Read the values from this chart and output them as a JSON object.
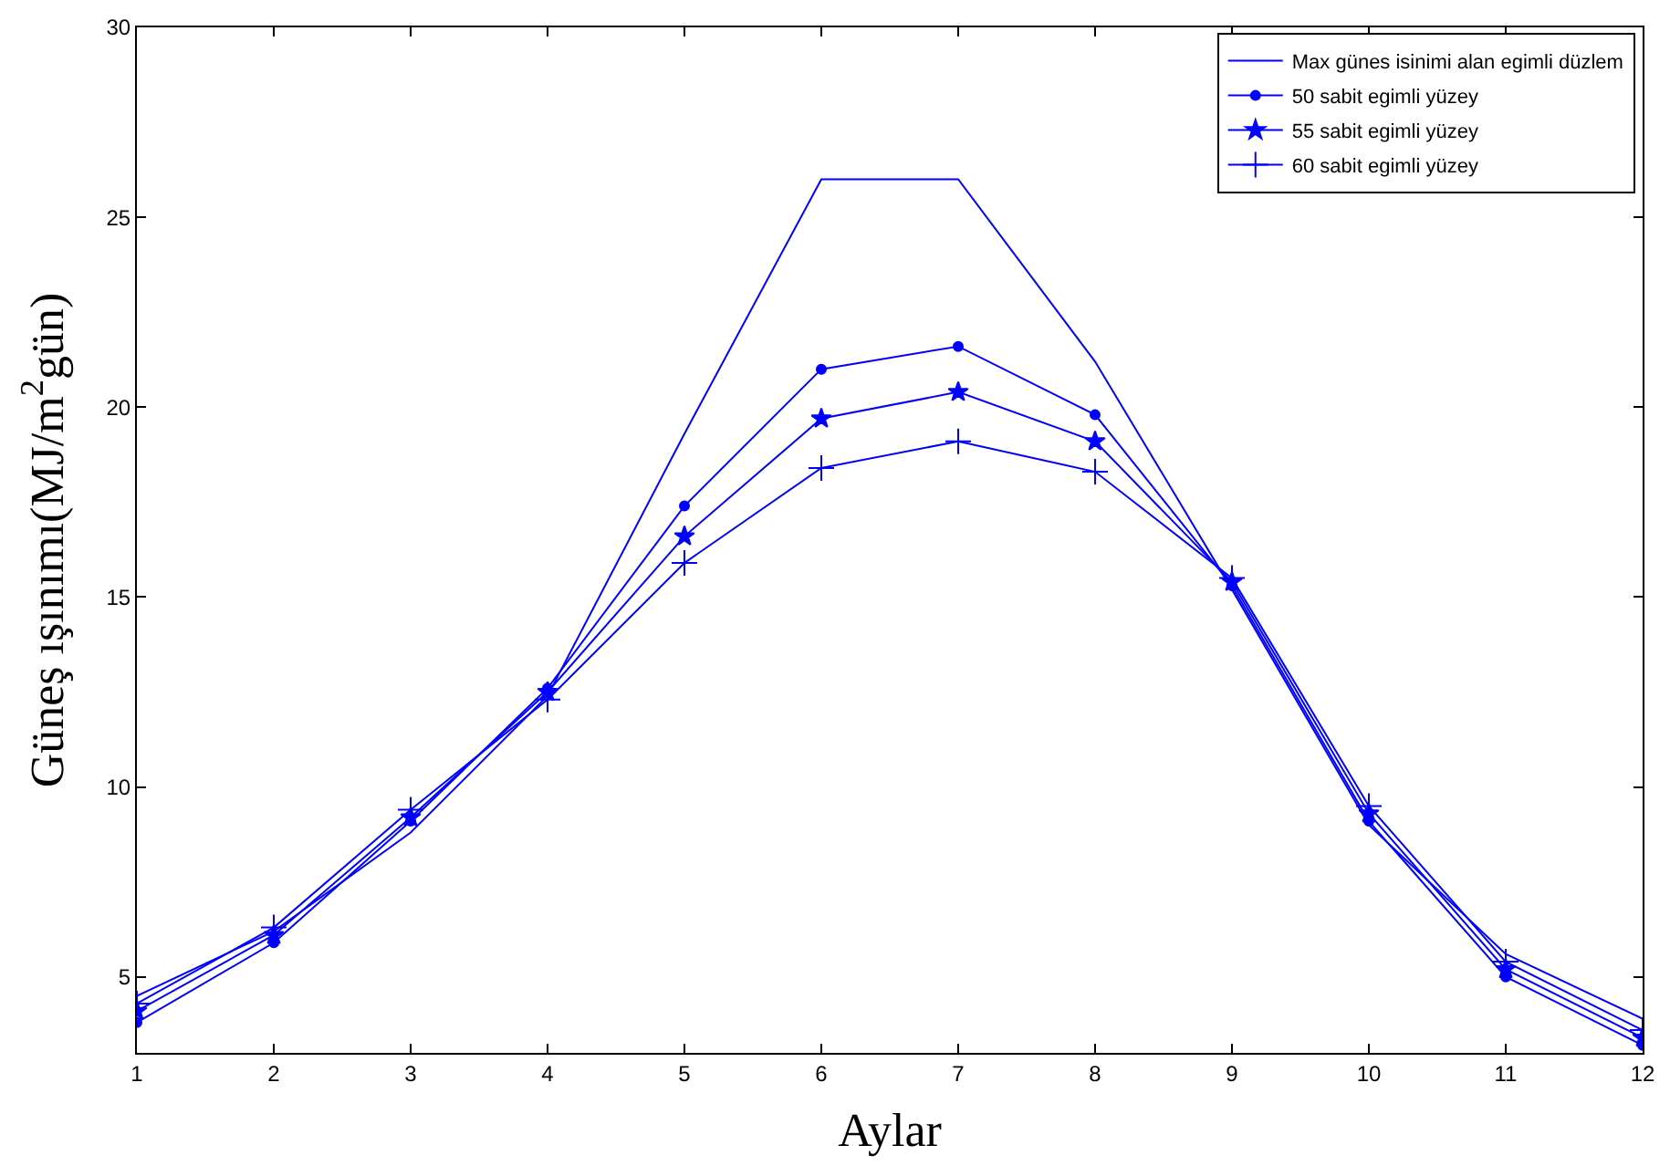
{
  "chart_data": {
    "type": "line",
    "xlabel": "Aylar",
    "ylabel": "Güneş ışınımı(MJ/m$^{2}$gün)",
    "x": [
      1,
      2,
      3,
      4,
      5,
      6,
      7,
      8,
      9,
      10,
      11,
      12
    ],
    "xlim": [
      1,
      12
    ],
    "xticks": [
      1,
      2,
      3,
      4,
      5,
      6,
      7,
      8,
      9,
      10,
      11,
      12
    ],
    "ylim": [
      3,
      30
    ],
    "yticks": [
      5,
      10,
      15,
      20,
      25,
      30
    ],
    "legend": "top right",
    "line_style": "solid",
    "series": [
      {
        "name": "Max günes isinimi alan egimli düzlem",
        "color": "#0000ff",
        "marker": "none",
        "values": [
          4.5,
          6.2,
          8.8,
          12.4,
          19.3,
          26,
          26,
          21.2,
          15.2,
          9.0,
          5.6,
          3.9
        ]
      },
      {
        "name": "50 sabit egimli yüzey",
        "color": "#0000ff",
        "marker": "circle",
        "values": [
          3.8,
          5.9,
          9.1,
          12.6,
          17.4,
          21.0,
          21.6,
          19.8,
          15.3,
          9.1,
          5.0,
          3.2
        ]
      },
      {
        "name": "55 sabit egimli yüzey",
        "color": "#0000ff",
        "marker": "star",
        "values": [
          4.1,
          6.1,
          9.2,
          12.5,
          16.6,
          19.7,
          20.4,
          19.1,
          15.4,
          9.3,
          5.2,
          3.4
        ]
      },
      {
        "name": "60 sabit egimli yüzey",
        "color": "#0000ff",
        "marker": "cross",
        "values": [
          4.3,
          6.3,
          9.4,
          12.3,
          15.9,
          18.4,
          19.1,
          18.3,
          15.5,
          9.5,
          5.4,
          3.6
        ]
      }
    ]
  }
}
